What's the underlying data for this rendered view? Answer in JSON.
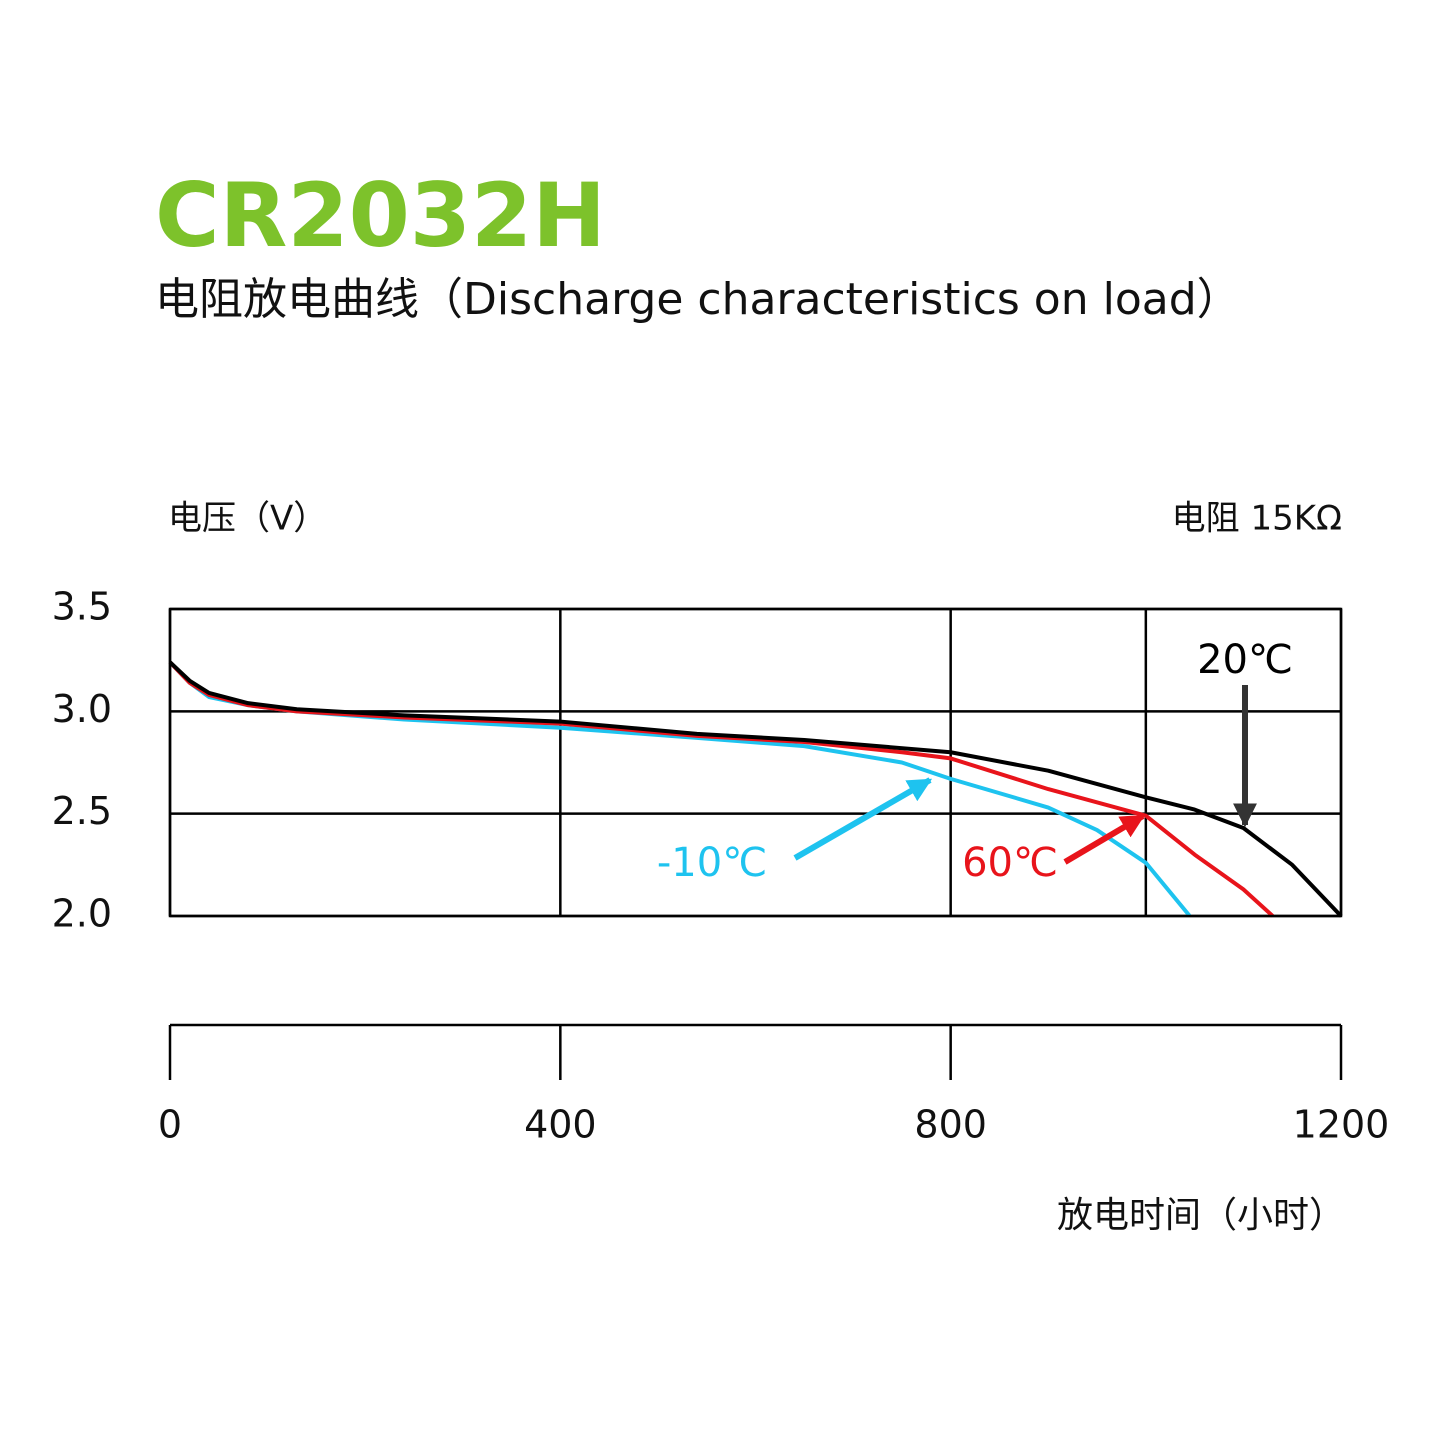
{
  "chart_data": {
    "type": "line",
    "title": "CR2032H",
    "subtitle": "电阻放电曲线（Discharge characteristics on load）",
    "y_label": "电压（V）",
    "load_label": "电阻 15KΩ",
    "x_label": "放电时间（小时）",
    "title_color": "#7dc22b",
    "xlim": [
      0,
      1200
    ],
    "xticks": [
      0,
      400,
      800,
      1200
    ],
    "xgrid": [
      0,
      400,
      800,
      1000,
      1200
    ],
    "ylim": [
      2.0,
      3.5
    ],
    "yticks": [
      {
        "value": 2,
        "label": "2.0"
      },
      2.5,
      {
        "value": 3,
        "label": "3.0"
      },
      3.5
    ],
    "grid": true,
    "series": [
      {
        "name": "20℃",
        "color": "#000000",
        "x": [
          0,
          20,
          40,
          80,
          130,
          240,
          400,
          540,
          650,
          800,
          900,
          1000,
          1050,
          1100,
          1150,
          1200
        ],
        "values": [
          3.24,
          3.15,
          3.09,
          3.04,
          3.01,
          2.98,
          2.95,
          2.89,
          2.86,
          2.8,
          2.71,
          2.58,
          2.52,
          2.43,
          2.25,
          2.0
        ]
      },
      {
        "name": "60℃",
        "color": "#e8141b",
        "x": [
          0,
          20,
          40,
          80,
          130,
          240,
          400,
          540,
          650,
          750,
          800,
          900,
          1000,
          1050,
          1100,
          1130
        ],
        "values": [
          3.24,
          3.14,
          3.08,
          3.03,
          3.0,
          2.97,
          2.94,
          2.88,
          2.85,
          2.8,
          2.77,
          2.62,
          2.49,
          2.3,
          2.13,
          2.0
        ]
      },
      {
        "name": "-10℃",
        "color": "#1ec3ef",
        "x": [
          0,
          20,
          40,
          80,
          130,
          240,
          400,
          540,
          650,
          750,
          800,
          900,
          950,
          1000,
          1045
        ],
        "values": [
          3.24,
          3.14,
          3.07,
          3.03,
          3.0,
          2.96,
          2.92,
          2.87,
          2.83,
          2.75,
          2.67,
          2.53,
          2.42,
          2.26,
          2.0
        ]
      }
    ]
  }
}
